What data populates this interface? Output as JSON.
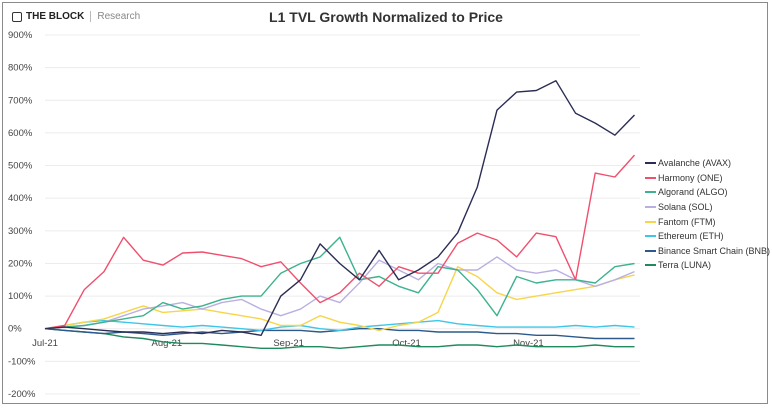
{
  "header": {
    "brand": "THE BLOCK",
    "brand_sub": "Research"
  },
  "chart_data": {
    "type": "line",
    "title": "L1 TVL Growth Normalized to Price",
    "xlabel": "",
    "ylabel": "",
    "ylim": [
      -200,
      900
    ],
    "yticks": [
      "900%",
      "800%",
      "700%",
      "600%",
      "500%",
      "400%",
      "300%",
      "200%",
      "100%",
      "0%",
      "-100%",
      "-200%"
    ],
    "ytick_values": [
      900,
      800,
      700,
      600,
      500,
      400,
      300,
      200,
      100,
      0,
      -100,
      -200
    ],
    "xticks": [
      "Jul-21",
      "Aug-21",
      "Sep-21",
      "Oct-21",
      "Nov-21"
    ],
    "xtick_dates": [
      "2021-07-01",
      "2021-08-01",
      "2021-09-01",
      "2021-10-01",
      "2021-11-01"
    ],
    "grid": true,
    "legend_position": "right",
    "x": [
      "2021-07-01",
      "2021-07-06",
      "2021-07-11",
      "2021-07-16",
      "2021-07-21",
      "2021-07-26",
      "2021-07-31",
      "2021-08-05",
      "2021-08-10",
      "2021-08-15",
      "2021-08-20",
      "2021-08-25",
      "2021-08-30",
      "2021-09-04",
      "2021-09-09",
      "2021-09-14",
      "2021-09-19",
      "2021-09-24",
      "2021-09-29",
      "2021-10-04",
      "2021-10-09",
      "2021-10-14",
      "2021-10-19",
      "2021-10-24",
      "2021-10-29",
      "2021-11-03",
      "2021-11-08",
      "2021-11-13",
      "2021-11-18",
      "2021-11-23",
      "2021-11-28"
    ],
    "series": [
      {
        "name": "Avalanche (AVAX)",
        "color": "#2b2d55",
        "values": [
          0,
          5,
          0,
          -5,
          -10,
          -10,
          -15,
          -10,
          -15,
          -5,
          -10,
          -20,
          100,
          150,
          260,
          200,
          150,
          240,
          150,
          180,
          220,
          294,
          434,
          670,
          725,
          730,
          760,
          660,
          630,
          593,
          655
        ]
      },
      {
        "name": "Harmony (ONE)",
        "color": "#f0506e",
        "values": [
          0,
          10,
          120,
          175,
          280,
          210,
          195,
          232,
          235,
          225,
          215,
          190,
          205,
          140,
          80,
          110,
          170,
          130,
          190,
          170,
          170,
          262,
          293,
          272,
          220,
          293,
          282,
          150,
          477,
          465,
          532
        ]
      },
      {
        "name": "Algorand (ALGO)",
        "color": "#3cb28f",
        "values": [
          0,
          5,
          10,
          20,
          30,
          40,
          80,
          60,
          70,
          90,
          100,
          100,
          170,
          200,
          220,
          280,
          150,
          160,
          130,
          110,
          190,
          180,
          120,
          40,
          160,
          140,
          150,
          150,
          140,
          190,
          200
        ]
      },
      {
        "name": "Solana (SOL)",
        "color": "#b9b0e2",
        "values": [
          0,
          5,
          10,
          20,
          40,
          60,
          70,
          80,
          60,
          80,
          90,
          60,
          40,
          60,
          100,
          80,
          140,
          210,
          180,
          150,
          200,
          180,
          180,
          220,
          180,
          170,
          180,
          150,
          130,
          150,
          175
        ]
      },
      {
        "name": "Fantom (FTM)",
        "color": "#f7d54a",
        "values": [
          0,
          10,
          20,
          30,
          50,
          70,
          50,
          55,
          60,
          50,
          40,
          30,
          10,
          10,
          40,
          20,
          10,
          -5,
          10,
          20,
          50,
          190,
          160,
          110,
          90,
          100,
          110,
          120,
          130,
          150,
          165
        ]
      },
      {
        "name": "Ethereum (ETH)",
        "color": "#3ec6e8",
        "values": [
          0,
          10,
          20,
          25,
          20,
          15,
          10,
          5,
          10,
          5,
          0,
          -5,
          5,
          10,
          0,
          -5,
          5,
          10,
          15,
          20,
          25,
          15,
          10,
          5,
          5,
          5,
          5,
          10,
          5,
          10,
          5
        ]
      },
      {
        "name": "Binance Smart Chain (BNB)",
        "color": "#2c5a8c",
        "values": [
          0,
          -5,
          -10,
          -15,
          -10,
          -15,
          -20,
          -15,
          -10,
          -15,
          -10,
          -5,
          -5,
          -5,
          -10,
          -5,
          0,
          0,
          -5,
          -5,
          -10,
          -10,
          -10,
          -15,
          -15,
          -20,
          -20,
          -25,
          -30,
          -30,
          -30
        ]
      },
      {
        "name": "Terra (LUNA)",
        "color": "#1f8a5c",
        "values": [
          0,
          -5,
          -10,
          -15,
          -25,
          -30,
          -40,
          -45,
          -45,
          -50,
          -55,
          -60,
          -60,
          -55,
          -55,
          -60,
          -55,
          -50,
          -50,
          -55,
          -55,
          -50,
          -50,
          -55,
          -50,
          -55,
          -55,
          -55,
          -50,
          -55,
          -55
        ]
      }
    ]
  }
}
